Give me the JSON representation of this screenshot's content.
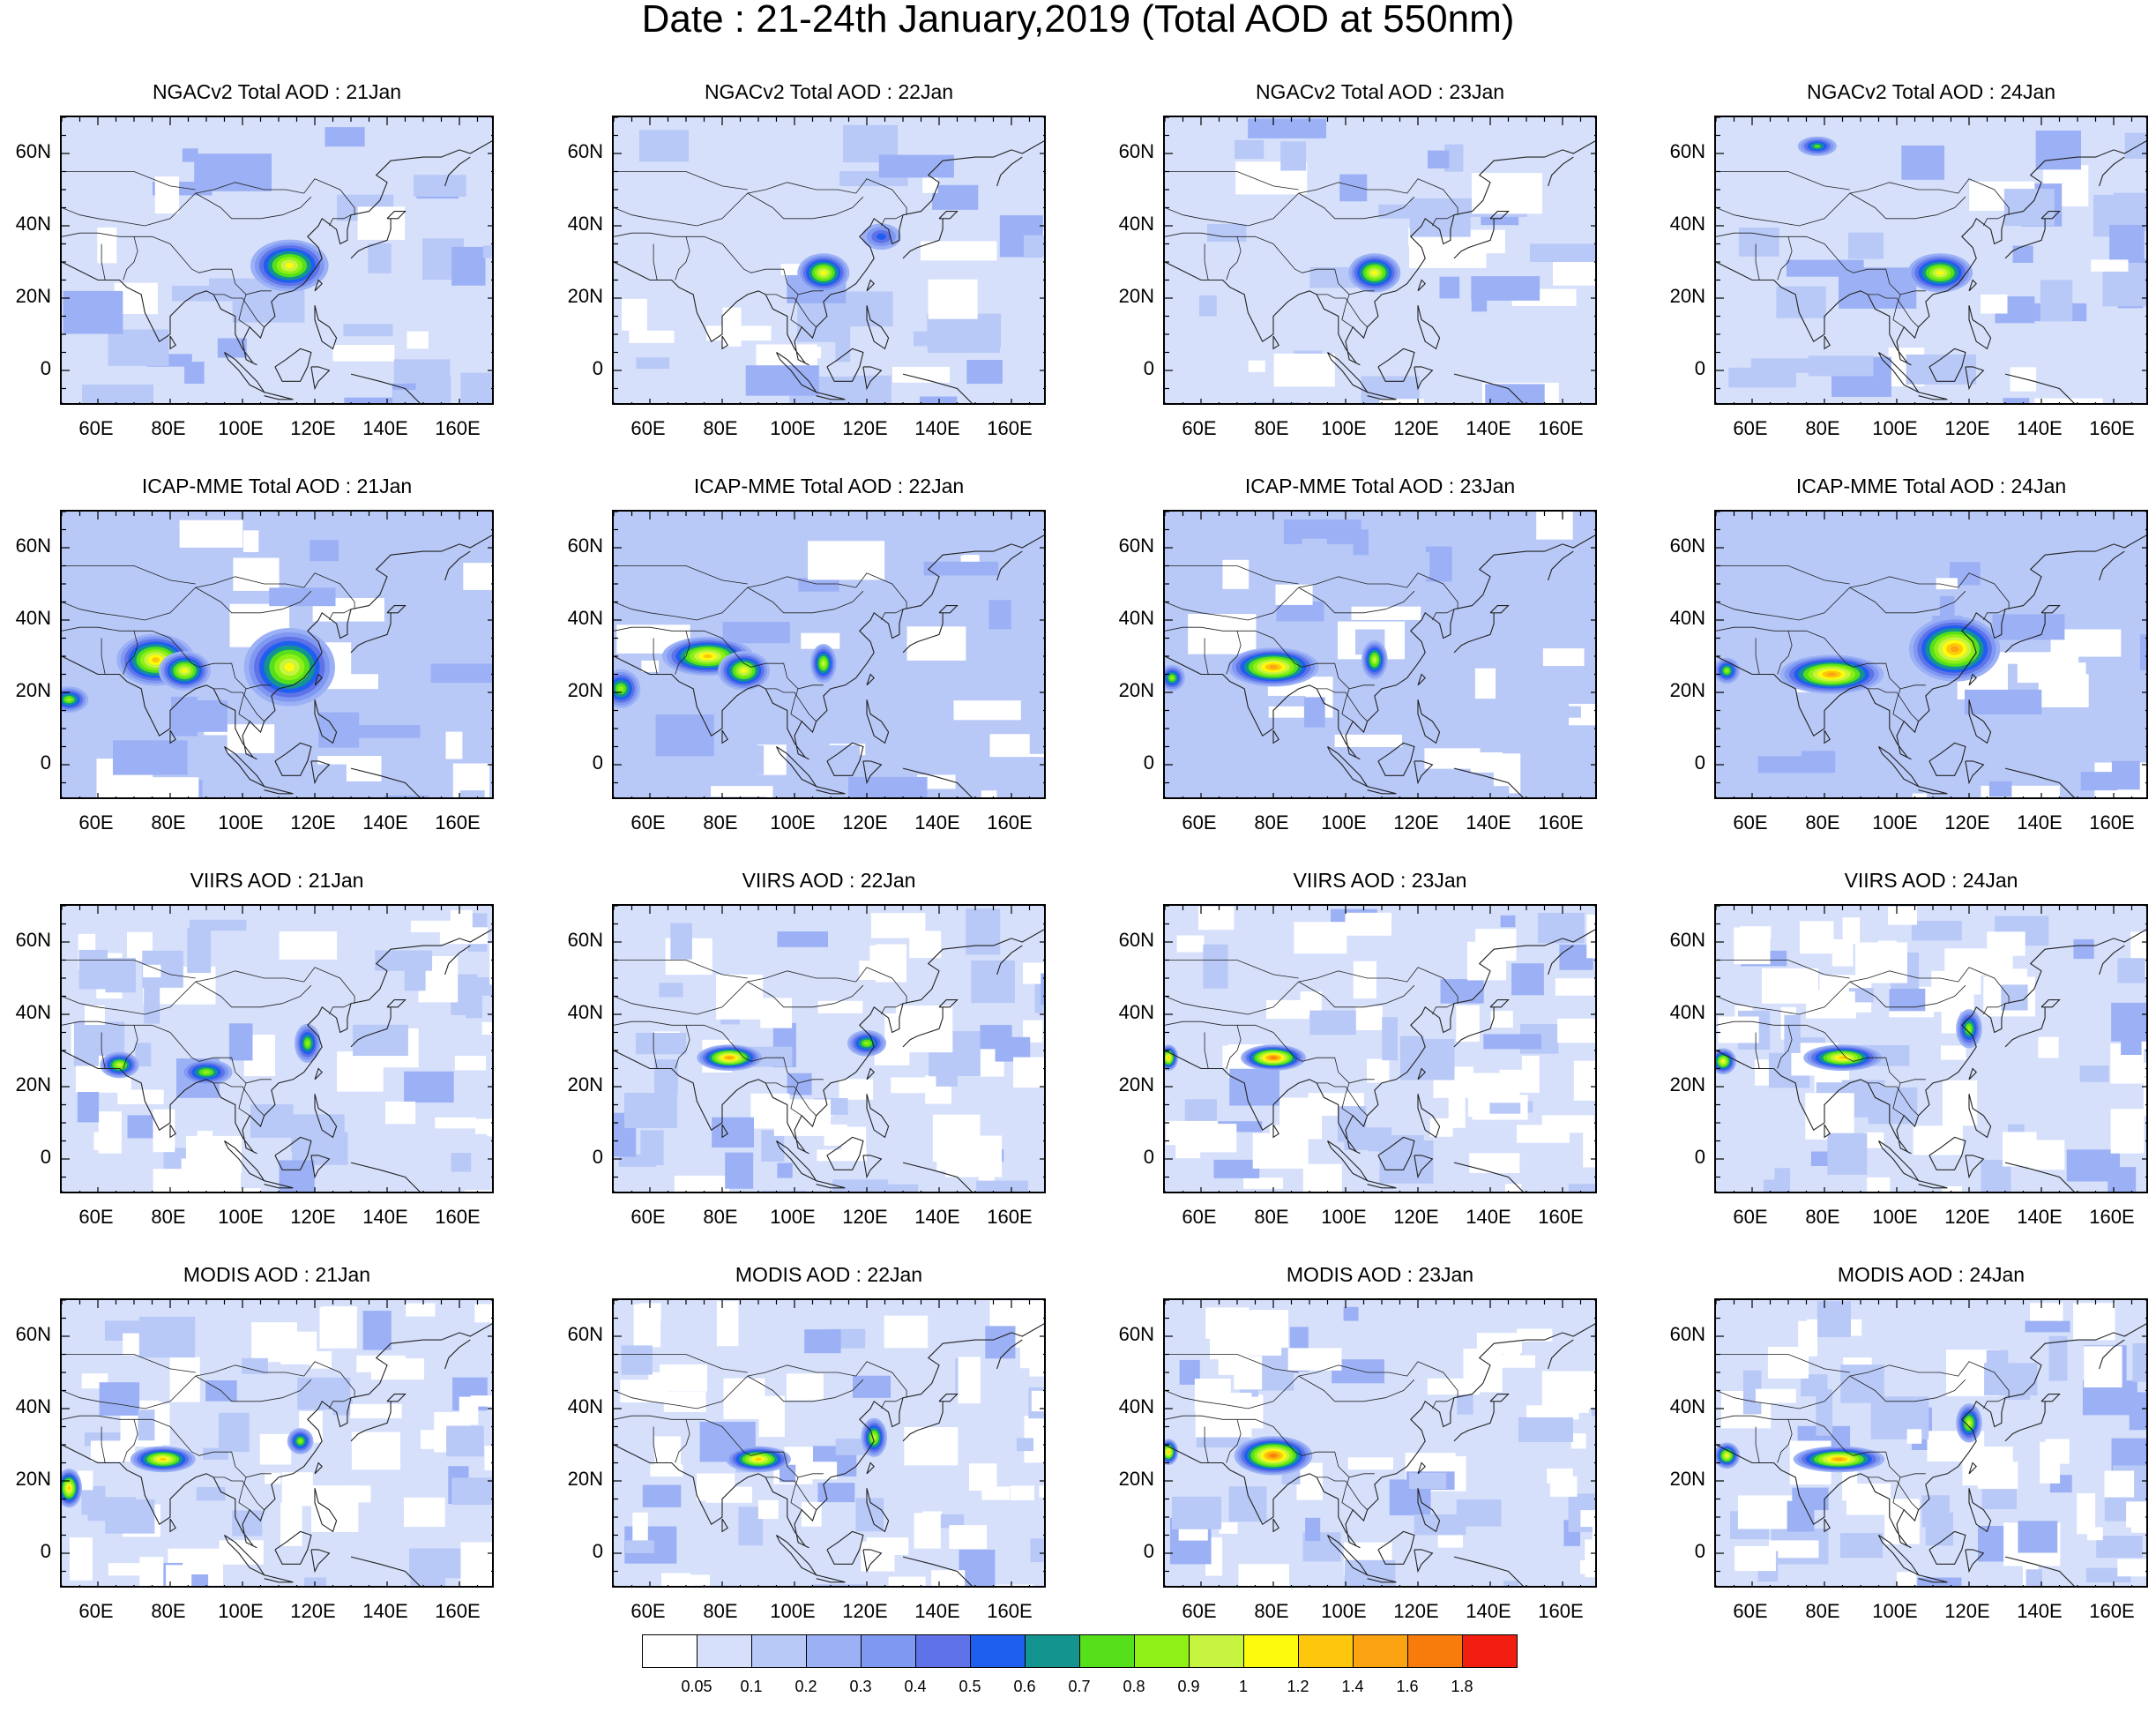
{
  "title": "Date : 21-24th January,2019 (Total AOD at 550nm)",
  "rows": [
    {
      "product": "NGACv2 Total AOD",
      "titles": [
        "NGACv2 Total AOD : 21Jan",
        "NGACv2 Total AOD : 22Jan",
        "NGACv2 Total AOD : 23Jan",
        "NGACv2 Total AOD : 24Jan"
      ]
    },
    {
      "product": "ICAP-MME Total AOD",
      "titles": [
        "ICAP-MME Total AOD : 21Jan",
        "ICAP-MME Total AOD : 22Jan",
        "ICAP-MME Total AOD : 23Jan",
        "ICAP-MME Total AOD : 24Jan"
      ]
    },
    {
      "product": "VIIRS AOD",
      "titles": [
        "VIIRS AOD : 21Jan",
        "VIIRS AOD : 22Jan",
        "VIIRS AOD : 23Jan",
        "VIIRS AOD : 24Jan"
      ]
    },
    {
      "product": "MODIS AOD",
      "titles": [
        "MODIS AOD : 21Jan",
        "MODIS AOD : 22Jan",
        "MODIS AOD : 23Jan",
        "MODIS AOD : 24Jan"
      ]
    }
  ],
  "axes": {
    "lat_ticks": [
      "60N",
      "40N",
      "20N",
      "0"
    ],
    "lat_values": [
      60,
      40,
      20,
      0
    ],
    "lon_ticks": [
      "60E",
      "80E",
      "100E",
      "120E",
      "140E",
      "160E"
    ],
    "lon_values": [
      60,
      80,
      100,
      120,
      140,
      160
    ],
    "lon_range": [
      50,
      170
    ],
    "lat_range": [
      -10,
      70
    ]
  },
  "colorbar": {
    "labels": [
      "0.05",
      "0.1",
      "0.2",
      "0.3",
      "0.4",
      "0.5",
      "0.6",
      "0.7",
      "0.8",
      "0.9",
      "1",
      "1.2",
      "1.4",
      "1.6",
      "1.8"
    ],
    "colors": [
      "#ffffff",
      "#d6e0fb",
      "#b8c8f7",
      "#9cb1f5",
      "#7f98f1",
      "#5f72e8",
      "#1f5ff0",
      "#13948e",
      "#55e01b",
      "#8ff016",
      "#c6f43f",
      "#fdfa0d",
      "#fdc80c",
      "#fca311",
      "#f87c0c",
      "#f21f10"
    ]
  }
}
